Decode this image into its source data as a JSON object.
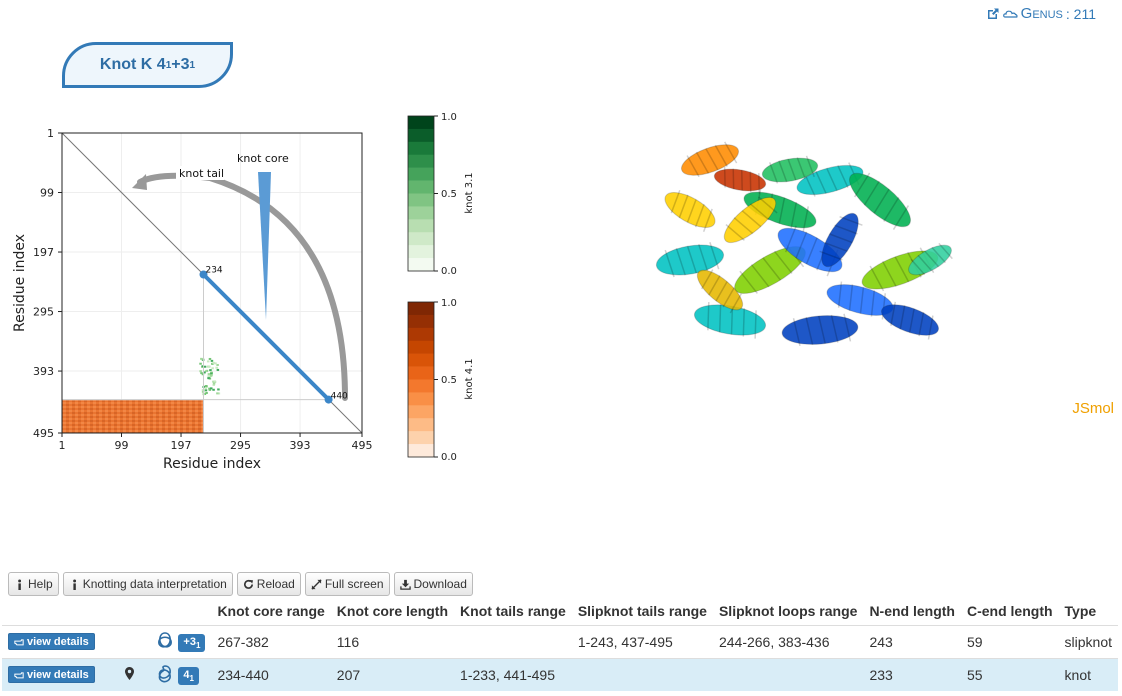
{
  "genus": {
    "label": "Genus",
    "value": ": 211",
    "icons": [
      "external-link-icon",
      "cloud-icon"
    ]
  },
  "knot_title": {
    "main": "Knot K 4",
    "sub1": "1",
    "mid": " +3",
    "sub2": "1"
  },
  "matrix": {
    "ylabel": "Residue index",
    "xlabel": "Residue index",
    "ticks": [
      1,
      99,
      197,
      295,
      393,
      495
    ],
    "annotation_tail": "knot tail",
    "annotation_core": "knot core",
    "point_start": "234",
    "point_end": "440",
    "core_range": [
      234,
      440
    ],
    "knot31_cluster": {
      "x": [
        230,
        260
      ],
      "y": [
        370,
        430
      ]
    },
    "knot41_region": {
      "x": [
        1,
        233
      ],
      "y": [
        441,
        495
      ]
    }
  },
  "colorbar_green": {
    "label": "knot 3.1",
    "ticks": [
      "0.0",
      "0.5",
      "1.0"
    ],
    "color": "#00441b"
  },
  "colorbar_orange": {
    "label": "knot 4.1",
    "ticks": [
      "0.0",
      "0.5",
      "1.0"
    ],
    "color": "#7f2704"
  },
  "jsmol": {
    "label": "JSmol"
  },
  "toolbar": {
    "help": "Help",
    "interpretation": "Knotting data interpretation",
    "reload": "Reload",
    "fullscreen": "Full screen",
    "download": "Download"
  },
  "table": {
    "headers": [
      "Knot core range",
      "Knot core length",
      "Knot tails range",
      "Slipknot tails range",
      "Slipknot loops range",
      "N-end length",
      "C-end length",
      "Type"
    ],
    "view_label": "view details",
    "rows": [
      {
        "badge_main": "+3",
        "badge_sub": "1",
        "core_range": "267-382",
        "core_length": "116",
        "tails_range": "",
        "slip_tails": "1-243, 437-495",
        "slip_loops": "244-266, 383-436",
        "n_end": "243",
        "c_end": "59",
        "type": "slipknot"
      },
      {
        "badge_main": "4",
        "badge_sub": "1",
        "core_range": "234-440",
        "core_length": "207",
        "tails_range": "1-233, 441-495",
        "slip_tails": "",
        "slip_loops": "",
        "n_end": "233",
        "c_end": "55",
        "type": "knot"
      }
    ]
  }
}
